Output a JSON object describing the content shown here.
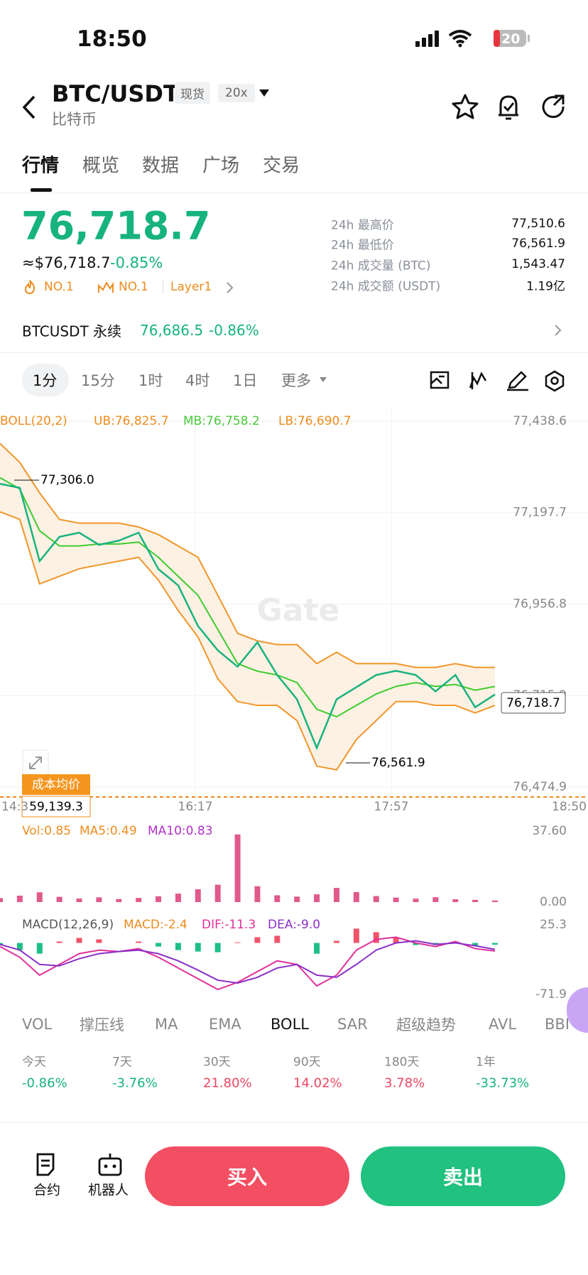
{
  "status": {
    "time": "18:50",
    "battery": "20"
  },
  "header": {
    "pair": "BTC/USDT",
    "spot": "现货",
    "leverage": "20x",
    "subtitle": "比特币"
  },
  "tabs": [
    "行情",
    "概览",
    "数据",
    "广场",
    "交易"
  ],
  "price": {
    "last": "76,718.7",
    "usd": "≈$76,718.7",
    "change": "-0.85%",
    "rank1": "NO.1",
    "rank2": "NO.1",
    "tag": "Layer1"
  },
  "stats": [
    {
      "label": "24h 最高价",
      "value": "77,510.6"
    },
    {
      "label": "24h 最低价",
      "value": "76,561.9"
    },
    {
      "label": "24h 成交量 (BTC)",
      "value": "1,543.47"
    },
    {
      "label": "24h 成交额 (USDT)",
      "value": "1.19亿"
    }
  ],
  "perp": {
    "name": "BTCUSDT 永续",
    "price": "76,686.5",
    "change": "-0.86%"
  },
  "intervals": [
    "1分",
    "15分",
    "1时",
    "4时",
    "1日",
    "更多"
  ],
  "chart_data": {
    "type": "line",
    "watermark": "Gate",
    "legend": [
      "BOLL(20,2)",
      "UB:76,825.7",
      "MB:76,758.2",
      "LB:76,690.7"
    ],
    "ylim": [
      76474.9,
      77438.6
    ],
    "yticks": [
      {
        "value": 77438.6,
        "label": "77,438.6"
      },
      {
        "value": 77197.7,
        "label": "77,197.7"
      },
      {
        "value": 76956.8,
        "label": "76,956.8"
      },
      {
        "value": 76715.9,
        "label": "76,715.9"
      },
      {
        "value": 76474.9,
        "label": "76,474.9"
      }
    ],
    "x_labels": [
      "14:3",
      "16:17",
      "17:57",
      "18:50"
    ],
    "series": [
      {
        "name": "UB",
        "color": "#f0962a",
        "values": [
          77380,
          77330,
          77250,
          77180,
          77170,
          77170,
          77170,
          77160,
          77140,
          77110,
          77080,
          76980,
          76880,
          76860,
          76850,
          76850,
          76800,
          76830,
          76800,
          76800,
          76800,
          76790,
          76790,
          76800,
          76790,
          76790
        ]
      },
      {
        "name": "MB",
        "color": "#3ecb2e",
        "values": [
          77290,
          77260,
          77150,
          77110,
          77110,
          77115,
          77115,
          77120,
          77080,
          77030,
          76980,
          76890,
          76800,
          76780,
          76770,
          76750,
          76680,
          76660,
          76690,
          76720,
          76740,
          76750,
          76740,
          76745,
          76730,
          76740
        ]
      },
      {
        "name": "LB",
        "color": "#f0962a",
        "values": [
          77200,
          77180,
          77010,
          77030,
          77050,
          77060,
          77070,
          77080,
          77020,
          76940,
          76870,
          76760,
          76700,
          76690,
          76690,
          76650,
          76530,
          76520,
          76600,
          76650,
          76700,
          76700,
          76690,
          76690,
          76670,
          76690
        ]
      },
      {
        "name": "Close",
        "color": "#19b27e",
        "values": [
          77273.7,
          77263,
          77070,
          77134,
          77145,
          77113,
          77124,
          77145,
          77049,
          77006,
          76899,
          76835,
          76792,
          76856,
          76770,
          76706,
          76578,
          76706,
          76738,
          76770,
          76781,
          76770,
          76727,
          76770,
          76685,
          76718.7
        ]
      }
    ],
    "annotations": {
      "high": "77,306.0",
      "low": "76,561.9",
      "current": "76,718.7",
      "cost_label": "成本均价",
      "cost": "59,139.3"
    },
    "volume": {
      "legend": [
        "Vol:0.85",
        "MA5:0.49",
        "MA10:0.83"
      ],
      "ylim": [
        0,
        37.6
      ],
      "yticks": [
        {
          "value": 37.6,
          "label": "37.60"
        },
        {
          "value": 0,
          "label": "0.00"
        }
      ],
      "color": "#e05a8c",
      "values": [
        2.1,
        3.4,
        5.2,
        2.8,
        1.9,
        2.5,
        1.6,
        2.2,
        3.1,
        4.5,
        6.8,
        9.2,
        35.8,
        8.4,
        3.6,
        2.9,
        4.1,
        7.5,
        5.3,
        3.2,
        2.4,
        1.8,
        2.6,
        1.5,
        1.2,
        0.85
      ]
    },
    "macd": {
      "legend": [
        "MACD(12,26,9)",
        "MACD:-2.4",
        "DIF:-11.3",
        "DEA:-9.0"
      ],
      "ylim": [
        -71.9,
        25.3
      ],
      "yticks": [
        {
          "value": 25.3,
          "label": "25.3"
        },
        {
          "value": -71.9,
          "label": "-71.9"
        }
      ],
      "hist": [
        -3,
        -10,
        -15,
        2,
        7,
        5,
        0,
        2,
        -5,
        -10,
        -12,
        -13,
        1,
        8,
        10,
        0,
        -15,
        3,
        20,
        15,
        8,
        -3,
        -3,
        2,
        -4,
        -2.4
      ],
      "dif": [
        -5,
        -20,
        -45,
        -30,
        -15,
        -10,
        -12,
        -8,
        -20,
        -35,
        -50,
        -65,
        -55,
        -40,
        -25,
        -30,
        -60,
        -45,
        -10,
        5,
        8,
        0,
        -5,
        2,
        -8,
        -11.3
      ],
      "dea": [
        -2,
        -10,
        -30,
        -32,
        -22,
        -15,
        -12,
        -10,
        -15,
        -25,
        -38,
        -52,
        -56,
        -48,
        -35,
        -30,
        -45,
        -48,
        -30,
        -10,
        0,
        3,
        -2,
        0,
        -4,
        -9.0
      ]
    }
  },
  "indicators": [
    "VOL",
    "撑压线",
    "MA",
    "EMA",
    "BOLL",
    "SAR",
    "超级趋势",
    "AVL",
    "BBI"
  ],
  "returns": [
    {
      "label": "今天",
      "value": "-0.86%"
    },
    {
      "label": "7天",
      "value": "-3.76%"
    },
    {
      "label": "30天",
      "value": "21.80%"
    },
    {
      "label": "90天",
      "value": "14.02%"
    },
    {
      "label": "180天",
      "value": "3.78%"
    },
    {
      "label": "1年",
      "value": "-33.73%"
    }
  ],
  "bottom": {
    "contract": "合约",
    "robot": "机器人",
    "buy": "买入",
    "sell": "卖出"
  }
}
